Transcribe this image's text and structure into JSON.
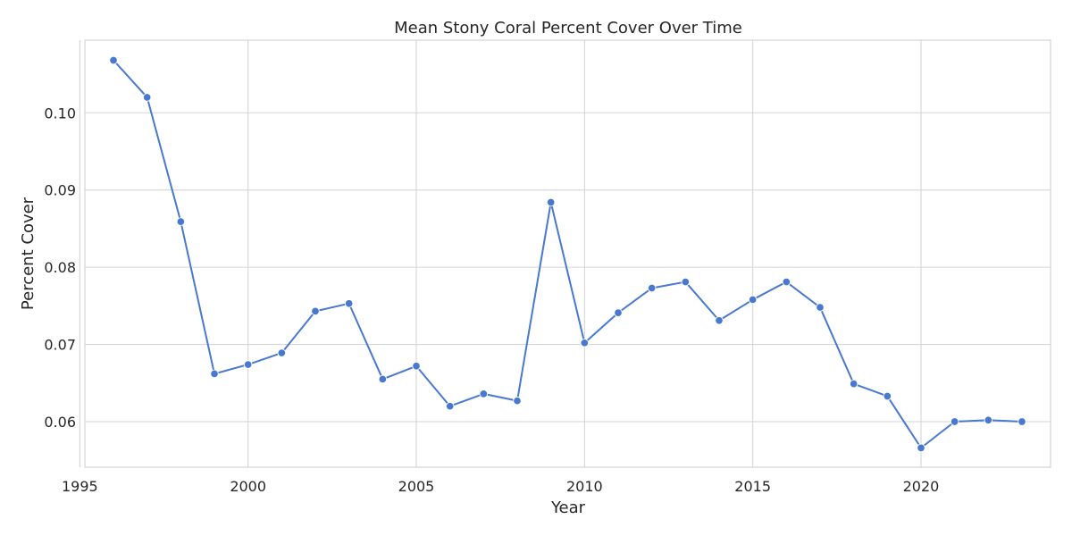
{
  "chart_data": {
    "type": "line",
    "title": "Mean Stony Coral Percent Cover Over Time",
    "xlabel": "Year",
    "ylabel": "Percent Cover",
    "x": [
      1996,
      1997,
      1998,
      1999,
      2000,
      2001,
      2002,
      2003,
      2004,
      2005,
      2006,
      2007,
      2008,
      2009,
      2010,
      2011,
      2012,
      2013,
      2014,
      2015,
      2016,
      2017,
      2018,
      2019,
      2020,
      2021,
      2022,
      2023
    ],
    "series": [
      {
        "values": [
          0.1068,
          0.102,
          0.0859,
          0.0662,
          0.0674,
          0.0689,
          0.0743,
          0.0753,
          0.0655,
          0.0672,
          0.062,
          0.0636,
          0.0627,
          0.0884,
          0.0702,
          0.0741,
          0.0773,
          0.0781,
          0.0731,
          0.0758,
          0.0781,
          0.0748,
          0.0649,
          0.0633,
          0.0566,
          0.06,
          0.0602,
          0.06
        ],
        "color": "#4878d0",
        "marker": "circle"
      }
    ],
    "xlim": [
      1995.15,
      2023.85
    ],
    "ylim": [
      0.0541,
      0.1094
    ],
    "xticks": [
      "1995",
      "2000",
      "2005",
      "2010",
      "2015",
      "2020"
    ],
    "yticks": [
      "0.06",
      "0.07",
      "0.08",
      "0.09",
      "0.10"
    ],
    "grid": true,
    "legend": "none"
  }
}
